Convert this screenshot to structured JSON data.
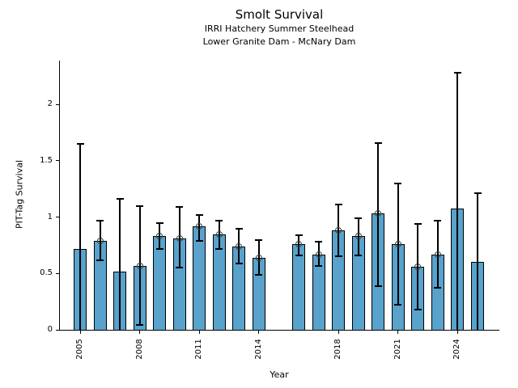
{
  "chart": {
    "title": "Smolt Survival",
    "subtitle1": "IRRI Hatchery Summer Steelhead",
    "subtitle2": "Lower Granite Dam - McNary Dam",
    "xlabel": "Year",
    "ylabel": "PIT-Tag Survival"
  },
  "chart_data": {
    "type": "bar",
    "title": "Smolt Survival",
    "subtitle": [
      "IRRI Hatchery Summer Steelhead",
      "Lower Granite Dam - McNary Dam"
    ],
    "xlabel": "Year",
    "ylabel": "PIT-Tag Survival",
    "x_ticks": [
      2005,
      2008,
      2011,
      2014,
      2018,
      2021,
      2024
    ],
    "x_tick_labels": [
      "2005",
      "2008",
      "2011",
      "2014",
      "2018",
      "2021",
      "2024"
    ],
    "y_ticks": [
      0,
      0.5,
      1,
      1.5,
      2
    ],
    "y_tick_labels": [
      "0",
      "0.5",
      "1",
      "1.5",
      "2"
    ],
    "xlim": [
      2003.9,
      2026.1
    ],
    "ylim": [
      0,
      2.39
    ],
    "grid": false,
    "legend": null,
    "missing_years": [
      2015
    ],
    "bar_color": "#58A2CC",
    "bar_edge_color": "#000000",
    "error_color": "#000000",
    "marker_edge_color": "#3c3c3c",
    "series": [
      {
        "year": 2005,
        "value": 0.72,
        "ci_low": 0.0,
        "ci_high": 1.65,
        "marker": false,
        "lower_cap": false
      },
      {
        "year": 2006,
        "value": 0.79,
        "ci_low": 0.62,
        "ci_high": 0.97,
        "marker": true,
        "lower_cap": true
      },
      {
        "year": 2007,
        "value": 0.52,
        "ci_low": 0.0,
        "ci_high": 1.16,
        "marker": false,
        "lower_cap": false
      },
      {
        "year": 2008,
        "value": 0.57,
        "ci_low": 0.04,
        "ci_high": 1.1,
        "marker": true,
        "lower_cap": true
      },
      {
        "year": 2009,
        "value": 0.83,
        "ci_low": 0.72,
        "ci_high": 0.95,
        "marker": true,
        "lower_cap": true
      },
      {
        "year": 2010,
        "value": 0.81,
        "ci_low": 0.55,
        "ci_high": 1.09,
        "marker": true,
        "lower_cap": true
      },
      {
        "year": 2011,
        "value": 0.92,
        "ci_low": 0.79,
        "ci_high": 1.02,
        "marker": true,
        "lower_cap": true
      },
      {
        "year": 2012,
        "value": 0.85,
        "ci_low": 0.72,
        "ci_high": 0.97,
        "marker": true,
        "lower_cap": true
      },
      {
        "year": 2013,
        "value": 0.74,
        "ci_low": 0.59,
        "ci_high": 0.9,
        "marker": true,
        "lower_cap": true
      },
      {
        "year": 2014,
        "value": 0.64,
        "ci_low": 0.49,
        "ci_high": 0.8,
        "marker": true,
        "lower_cap": true
      },
      {
        "year": 2016,
        "value": 0.76,
        "ci_low": 0.66,
        "ci_high": 0.84,
        "marker": true,
        "lower_cap": true
      },
      {
        "year": 2017,
        "value": 0.67,
        "ci_low": 0.57,
        "ci_high": 0.78,
        "marker": true,
        "lower_cap": true
      },
      {
        "year": 2018,
        "value": 0.88,
        "ci_low": 0.65,
        "ci_high": 1.11,
        "marker": true,
        "lower_cap": true
      },
      {
        "year": 2019,
        "value": 0.83,
        "ci_low": 0.66,
        "ci_high": 0.99,
        "marker": true,
        "lower_cap": true
      },
      {
        "year": 2020,
        "value": 1.03,
        "ci_low": 0.39,
        "ci_high": 1.66,
        "marker": true,
        "lower_cap": true
      },
      {
        "year": 2021,
        "value": 0.76,
        "ci_low": 0.22,
        "ci_high": 1.3,
        "marker": true,
        "lower_cap": true
      },
      {
        "year": 2022,
        "value": 0.56,
        "ci_low": 0.18,
        "ci_high": 0.94,
        "marker": true,
        "lower_cap": true
      },
      {
        "year": 2023,
        "value": 0.67,
        "ci_low": 0.37,
        "ci_high": 0.97,
        "marker": true,
        "lower_cap": true
      },
      {
        "year": 2024,
        "value": 1.08,
        "ci_low": 0.0,
        "ci_high": 2.28,
        "marker": false,
        "lower_cap": false
      },
      {
        "year": 2025,
        "value": 0.6,
        "ci_low": 0.0,
        "ci_high": 1.21,
        "marker": false,
        "lower_cap": false
      }
    ]
  }
}
